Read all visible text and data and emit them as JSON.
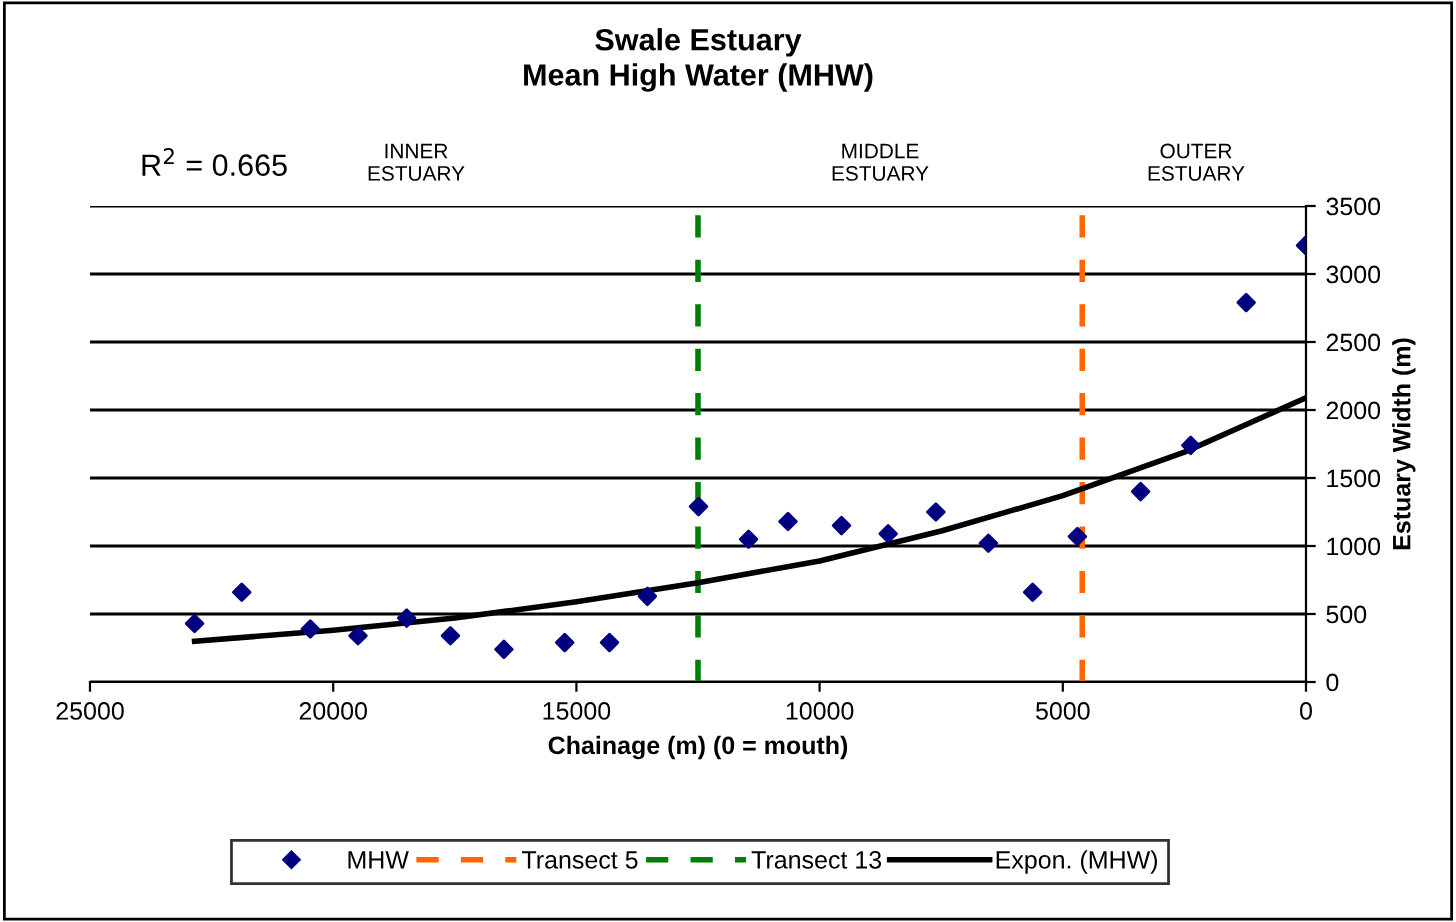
{
  "chart_data": {
    "type": "scatter",
    "title": "Swale Estuary\nMean High Water (MHW)",
    "xlabel": "Chainage (m) (0 = mouth)",
    "ylabel": "Estuary Width (m)",
    "series": [
      {
        "name": "MHW",
        "color": "#000080",
        "marker": "diamond",
        "x": [
          22850,
          21880,
          20470,
          19490,
          18490,
          17590,
          16490,
          15240,
          14320,
          13540,
          12490,
          11460,
          10650,
          9550,
          8590,
          7610,
          6530,
          5620,
          4700,
          3400,
          2370,
          1230,
          10
        ],
        "values": [
          430,
          660,
          390,
          340,
          470,
          340,
          240,
          290,
          290,
          630,
          1290,
          1050,
          1180,
          1150,
          1090,
          1250,
          1020,
          660,
          1070,
          1400,
          1740,
          2790,
          3210
        ]
      },
      {
        "name": "Expon. (MHW)",
        "type": "line",
        "color": "#000000",
        "line_style": "solid",
        "x": [
          22850,
          20000,
          17500,
          15000,
          12500,
          10000,
          7500,
          5000,
          2500,
          0
        ],
        "values": [
          300,
          380,
          470,
          590,
          730,
          890,
          1110,
          1370,
          1690,
          2090
        ]
      }
    ],
    "ref_lines": [
      {
        "axis": "x",
        "value": 4600,
        "label": "Transect 5",
        "color": "#ff6600",
        "line_style": "dashed"
      },
      {
        "axis": "x",
        "value": 12500,
        "label": "Transect 13",
        "color": "#008000",
        "line_style": "dashed"
      }
    ],
    "annotations": [
      "R$^{2}$ = 0.665",
      "INNER\nESTUARY",
      "MIDDLE\nESTUARY",
      "OUTER\nESTUARY"
    ],
    "xlim": [
      25000,
      0
    ],
    "xticks": [
      25000,
      20000,
      15000,
      10000,
      5000,
      0
    ],
    "ylim": [
      0,
      3500
    ],
    "yticks": [
      0,
      500,
      1000,
      1500,
      2000,
      2500,
      3000,
      3500
    ],
    "grid": "y",
    "legend": "bottom"
  }
}
